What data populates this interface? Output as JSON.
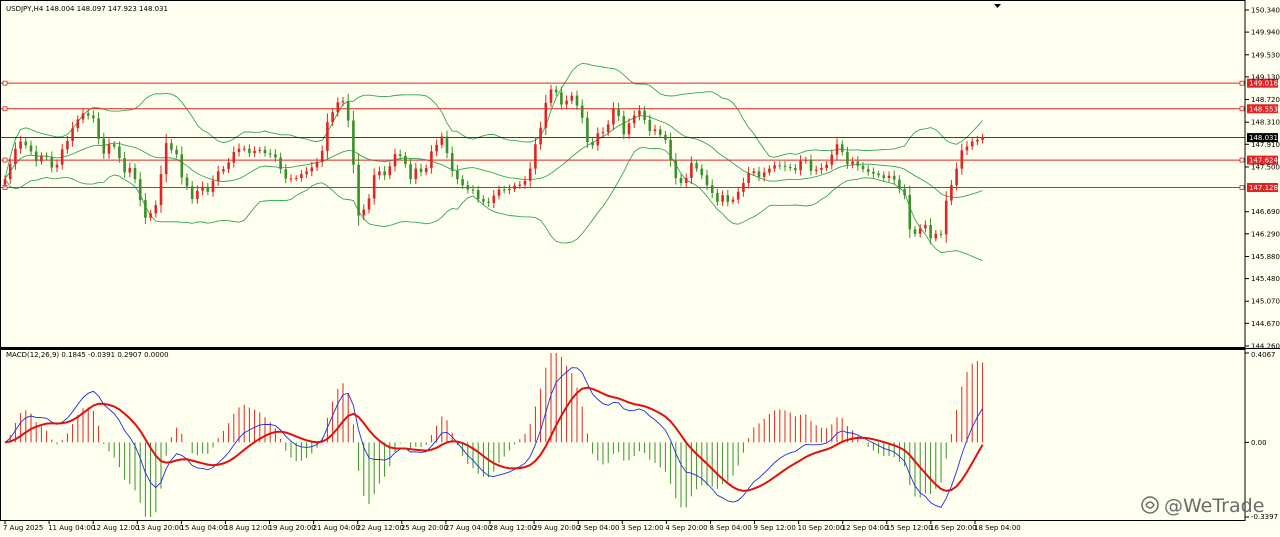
{
  "header": {
    "main": "USDJPY,H4  148.004 148.097 147.923 148.031",
    "macd": "MACD(12,26,9) 0.1845 -0.0391 0.2907 0.0000"
  },
  "watermark": "@WeTrade",
  "colors": {
    "background": "#fffff0",
    "bull": "#e02424",
    "bear": "#3a8f2a",
    "bands": "#36a657",
    "level_lines": "#e02424",
    "current_price_line": "#000000",
    "macd_line": "#1d2fd6",
    "signal_line": "#e01010",
    "hist_pos": "#e02424",
    "hist_neg": "#3a8f2a"
  },
  "chart_data": [
    {
      "type": "candlestick",
      "symbol": "USDJPY",
      "timeframe": "H4",
      "last_ohlc": {
        "open": 148.004,
        "high": 148.097,
        "low": 147.923,
        "close": 148.031
      },
      "ylim": [
        144.26,
        150.34
      ],
      "y_ticks": [
        "150.340",
        "149.940",
        "149.530",
        "149.130",
        "148.720",
        "148.310",
        "147.910",
        "147.500",
        "146.690",
        "146.290",
        "145.880",
        "145.480",
        "145.070",
        "144.670",
        "144.260"
      ],
      "x_ticks": [
        "7 Aug 2025",
        "11 Aug 04:00",
        "12 Aug 12:00",
        "13 Aug 20:00",
        "15 Aug 04:00",
        "18 Aug 12:00",
        "19 Aug 20:00",
        "21 Aug 04:00",
        "22 Aug 12:00",
        "25 Aug 20:00",
        "27 Aug 04:00",
        "28 Aug 12:00",
        "29 Aug 20:00",
        "2 Sep 04:00",
        "3 Sep 12:00",
        "4 Sep 20:00",
        "8 Sep 04:00",
        "9 Sep 12:00",
        "10 Sep 20:00",
        "12 Sep 04:00",
        "15 Sep 12:00",
        "16 Sep 20:00",
        "18 Sep 04:00"
      ],
      "levels": [
        {
          "value": 149.016,
          "label": "149.016"
        },
        {
          "value": 148.553,
          "label": "148.553"
        },
        {
          "value": 147.624,
          "label": "147.624"
        },
        {
          "value": 147.128,
          "label": "147.128"
        }
      ],
      "current_price": {
        "value": 148.031,
        "label": "148.031"
      },
      "closes": [
        147.28,
        147.55,
        147.83,
        147.96,
        147.89,
        147.78,
        147.6,
        147.7,
        147.68,
        147.49,
        147.54,
        147.82,
        147.97,
        148.2,
        148.36,
        148.47,
        148.43,
        148.38,
        148.01,
        147.74,
        147.91,
        147.87,
        147.66,
        147.4,
        147.48,
        147.28,
        146.9,
        146.58,
        146.66,
        146.81,
        147.37,
        147.93,
        147.81,
        147.73,
        147.31,
        147.15,
        146.92,
        147.07,
        147.14,
        147.05,
        147.25,
        147.42,
        147.46,
        147.58,
        147.77,
        147.83,
        147.83,
        147.75,
        147.79,
        147.81,
        147.75,
        147.73,
        147.67,
        147.46,
        147.29,
        147.29,
        147.3,
        147.37,
        147.42,
        147.49,
        147.59,
        147.79,
        148.31,
        148.49,
        148.67,
        148.69,
        148.34,
        147.54,
        146.62,
        146.73,
        146.93,
        147.35,
        147.42,
        147.35,
        147.51,
        147.73,
        147.7,
        147.55,
        147.28,
        147.47,
        147.41,
        147.48,
        147.78,
        147.9,
        148.05,
        147.75,
        147.43,
        147.28,
        147.17,
        147.09,
        147.08,
        146.92,
        146.87,
        146.85,
        146.98,
        147.09,
        147.08,
        147.1,
        147.16,
        147.18,
        147.25,
        147.47,
        147.91,
        148.21,
        148.66,
        148.9,
        148.85,
        148.63,
        148.7,
        148.79,
        148.61,
        148.39,
        147.95,
        147.89,
        148.11,
        148.13,
        148.27,
        148.56,
        148.42,
        148.09,
        148.29,
        148.43,
        148.52,
        148.35,
        148.15,
        148.18,
        148.08,
        147.99,
        147.62,
        147.3,
        147.21,
        147.3,
        147.57,
        147.47,
        147.35,
        147.17,
        147.03,
        146.87,
        146.99,
        146.87,
        146.91,
        147.05,
        147.21,
        147.39,
        147.42,
        147.32,
        147.4,
        147.47,
        147.53,
        147.52,
        147.5,
        147.48,
        147.44,
        147.61,
        147.63,
        147.43,
        147.45,
        147.48,
        147.54,
        147.72,
        147.91,
        147.77,
        147.55,
        147.6,
        147.52,
        147.46,
        147.41,
        147.38,
        147.35,
        147.3,
        147.34,
        147.27,
        147.1,
        146.99,
        146.37,
        146.29,
        146.39,
        146.45,
        146.21,
        146.29,
        146.28,
        146.89,
        147.17,
        147.47,
        147.8,
        147.87,
        147.96,
        147.99,
        148.03
      ]
    },
    {
      "type": "line",
      "name": "MACD(12,26,9)",
      "values_last": {
        "macd": 0.1845,
        "signal": -0.0391,
        "histogram": 0.2907,
        "extra": 0.0
      },
      "ylim": [
        -0.3397,
        0.4067
      ],
      "y_ticks": [
        "0.4067",
        "0.00",
        "-0.3397"
      ]
    }
  ]
}
